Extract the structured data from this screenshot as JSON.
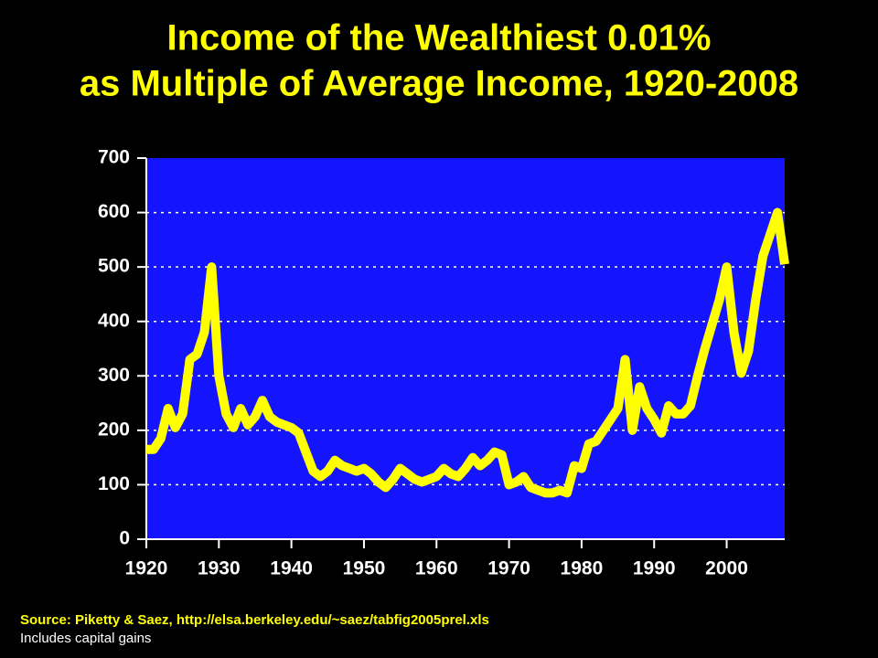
{
  "chart_data": {
    "type": "line",
    "title": "Income of the Wealthiest 0.01%",
    "subtitle": "as Multiple of Average Income, 1920-2008",
    "source": "Source: Piketty & Saez, http://elsa.berkeley.edu/~saez/tabfig2005prel.xls",
    "note": "Includes capital gains",
    "x": [
      1920,
      1921,
      1922,
      1923,
      1924,
      1925,
      1926,
      1927,
      1928,
      1929,
      1930,
      1931,
      1932,
      1933,
      1934,
      1935,
      1936,
      1937,
      1938,
      1939,
      1940,
      1941,
      1942,
      1943,
      1944,
      1945,
      1946,
      1947,
      1948,
      1949,
      1950,
      1951,
      1952,
      1953,
      1954,
      1955,
      1956,
      1957,
      1958,
      1959,
      1960,
      1961,
      1962,
      1963,
      1964,
      1965,
      1966,
      1967,
      1968,
      1969,
      1970,
      1971,
      1972,
      1973,
      1974,
      1975,
      1976,
      1977,
      1978,
      1979,
      1980,
      1981,
      1982,
      1983,
      1984,
      1985,
      1986,
      1987,
      1988,
      1989,
      1990,
      1991,
      1992,
      1993,
      1994,
      1995,
      1996,
      1997,
      1998,
      1999,
      2000,
      2001,
      2002,
      2003,
      2004,
      2005,
      2006,
      2007,
      2008
    ],
    "values": [
      165,
      165,
      185,
      240,
      205,
      230,
      330,
      340,
      380,
      500,
      300,
      230,
      205,
      240,
      210,
      225,
      255,
      225,
      215,
      210,
      205,
      195,
      160,
      125,
      115,
      125,
      145,
      135,
      130,
      125,
      130,
      120,
      105,
      95,
      110,
      130,
      120,
      110,
      105,
      110,
      115,
      130,
      120,
      115,
      130,
      150,
      135,
      145,
      160,
      155,
      100,
      105,
      115,
      95,
      90,
      85,
      85,
      90,
      85,
      135,
      130,
      175,
      180,
      200,
      220,
      240,
      330,
      200,
      280,
      240,
      220,
      195,
      245,
      230,
      230,
      245,
      300,
      350,
      395,
      440,
      500,
      380,
      305,
      345,
      440,
      520,
      560,
      600,
      505
    ],
    "color": "#ffff00",
    "xlim": [
      1920,
      2008
    ],
    "xticks": [
      1920,
      1930,
      1940,
      1950,
      1960,
      1970,
      1980,
      1990,
      2000
    ],
    "ylim": [
      0,
      700
    ],
    "yticks": [
      0,
      100,
      200,
      300,
      400,
      500,
      600,
      700
    ],
    "grid": true
  }
}
